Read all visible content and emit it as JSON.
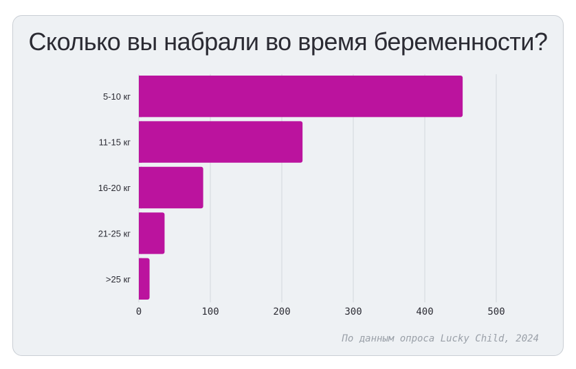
{
  "title": "Сколько вы набрали во время беременности?",
  "source": "По данным опроса Lucky Child, 2024",
  "colors": {
    "bar": "#bb139e",
    "grid": "#d3d7dc",
    "card_bg": "#eef1f4",
    "text": "#2b2b33",
    "source": "#9aa0a8"
  },
  "chart_data": {
    "type": "bar",
    "orientation": "horizontal",
    "title": "Сколько вы набрали во время беременности?",
    "categories": [
      "5-10 кг",
      "11-15 кг",
      "16-20 кг",
      "21-25 кг",
      ">25 кг"
    ],
    "values": [
      453,
      229,
      90,
      36,
      15
    ],
    "xlabel": "",
    "ylabel": "",
    "xlim": [
      0,
      500
    ],
    "xticks": [
      0,
      100,
      200,
      300,
      400,
      500
    ],
    "grid": true,
    "legend": "none"
  }
}
